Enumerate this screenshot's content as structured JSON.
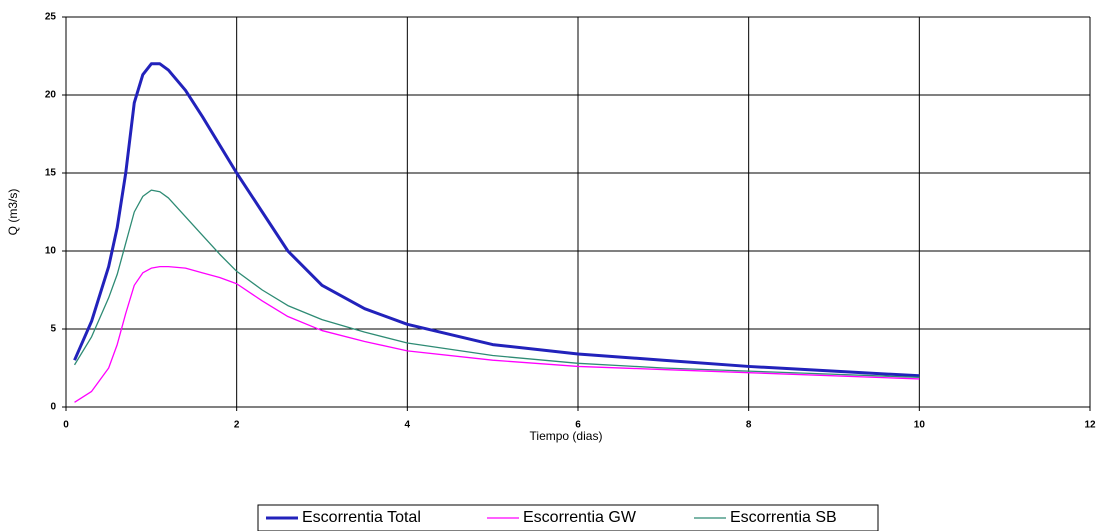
{
  "chart_data": {
    "type": "line",
    "xlabel": "Tiempo (dias)",
    "ylabel": "Q (m3/s)",
    "x": [
      0.1,
      0.3,
      0.5,
      0.6,
      0.7,
      0.8,
      0.9,
      1.0,
      1.1,
      1.2,
      1.4,
      1.6,
      1.8,
      2.0,
      2.3,
      2.6,
      3.0,
      3.5,
      4.0,
      5.0,
      6.0,
      7.0,
      8.0,
      9.0,
      10.0
    ],
    "series": [
      {
        "name": "Escorrentia Total",
        "color": "#2222bb",
        "values": [
          3,
          5.5,
          9,
          11.5,
          15,
          19.5,
          21.3,
          22,
          22,
          21.6,
          20.3,
          18.6,
          16.8,
          15,
          12.5,
          10,
          7.8,
          6.3,
          5.3,
          4.0,
          3.4,
          3.0,
          2.6,
          2.3,
          2.0
        ]
      },
      {
        "name": "Escorrentia GW",
        "color": "#ff00ff",
        "values": [
          0.3,
          1.0,
          2.5,
          4,
          6,
          7.8,
          8.6,
          8.9,
          9.0,
          9.0,
          8.9,
          8.6,
          8.3,
          7.9,
          6.8,
          5.8,
          4.9,
          4.2,
          3.6,
          3.0,
          2.6,
          2.4,
          2.2,
          2.0,
          1.8
        ]
      },
      {
        "name": "Escorrentia SB",
        "color": "#2e8b74",
        "values": [
          2.7,
          4.5,
          7,
          8.5,
          10.5,
          12.5,
          13.5,
          13.9,
          13.8,
          13.4,
          12.2,
          11.0,
          9.8,
          8.7,
          7.5,
          6.5,
          5.6,
          4.8,
          4.1,
          3.3,
          2.8,
          2.5,
          2.3,
          2.1,
          1.9
        ]
      }
    ],
    "xlim": [
      0,
      12
    ],
    "xticks": [
      0,
      2,
      4,
      6,
      8,
      10,
      12
    ],
    "ylim": [
      0,
      25
    ],
    "yticks": [
      0,
      5,
      10,
      15,
      20,
      25
    ],
    "grid": true,
    "legend": "bottom"
  }
}
